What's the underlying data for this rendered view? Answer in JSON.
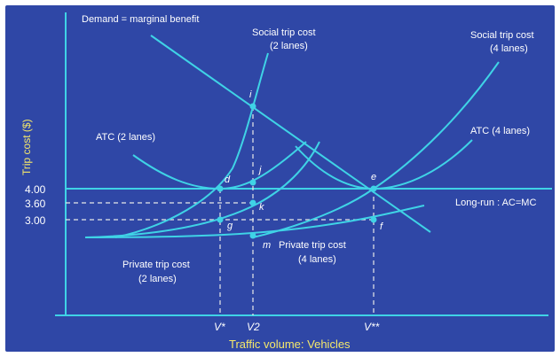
{
  "chart_data": {
    "type": "line",
    "ylabel": "Trip cost ($)",
    "xlabel": "Traffic volume: Vehicles",
    "y_ticks": [
      "4.00",
      "3.60",
      "3.00"
    ],
    "x_ticks": [
      "V*",
      "V2",
      "V**"
    ],
    "curve_labels": {
      "demand": "Demand = marginal benefit",
      "social2": [
        "Social trip cost",
        "(2 lanes)"
      ],
      "social4": [
        "Social trip cost",
        "(4 lanes)"
      ],
      "atc2": "ATC (2 lanes)",
      "atc4": "ATC (4 lanes)",
      "lr": "Long-run : AC=MC",
      "private2": [
        "Private trip cost",
        "(2 lanes)"
      ],
      "private4": [
        "Private trip cost",
        "(4 lanes)"
      ]
    },
    "points": {
      "i": "i",
      "j": "j",
      "d": "d",
      "e": "e",
      "k": "k",
      "g": "g",
      "f": "f",
      "m": "m"
    }
  }
}
